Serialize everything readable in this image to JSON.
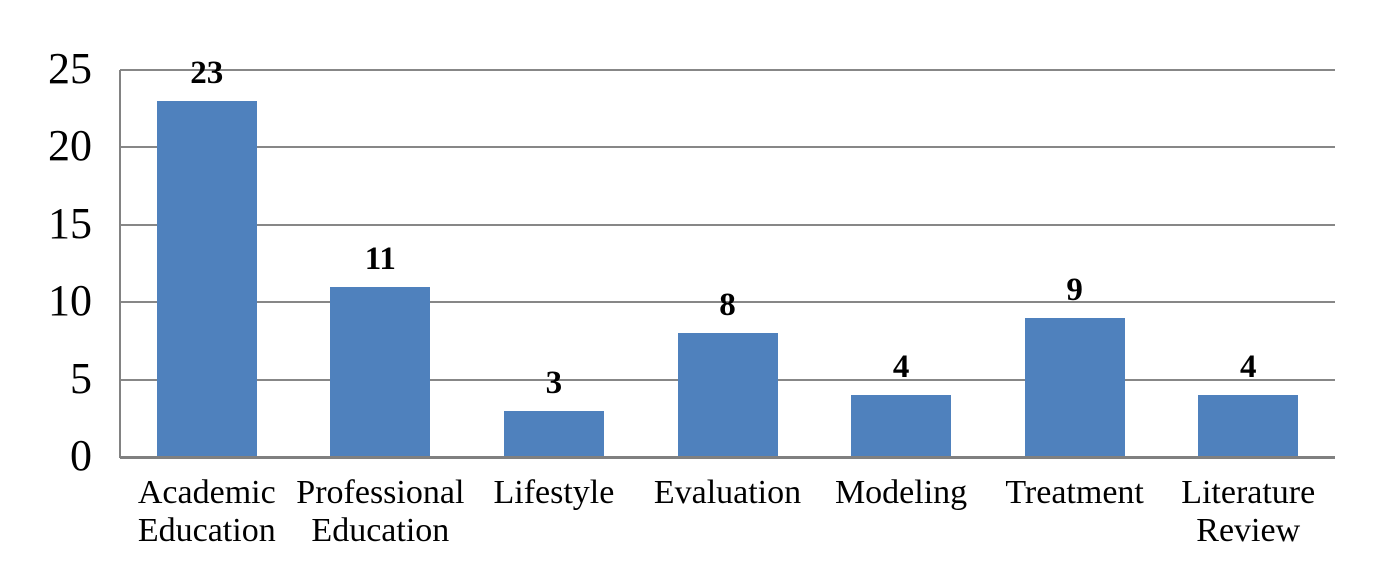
{
  "chart_data": {
    "type": "bar",
    "categories": [
      "Academic Education",
      "Professional Education",
      "Lifestyle",
      "Evaluation",
      "Modeling",
      "Treatment",
      "Literature Review"
    ],
    "categories_wrapped": [
      [
        "Academic",
        "Education"
      ],
      [
        "Professional",
        "Education"
      ],
      [
        "Lifestyle"
      ],
      [
        "Evaluation"
      ],
      [
        "Modeling"
      ],
      [
        "Treatment"
      ],
      [
        "Literature",
        "Review"
      ]
    ],
    "values": [
      23,
      11,
      3,
      8,
      4,
      9,
      4
    ],
    "data_labels": [
      "23",
      "11",
      "3",
      "8",
      "4",
      "9",
      "4"
    ],
    "title": "",
    "xlabel": "",
    "ylabel": "",
    "ylim": [
      0,
      25
    ],
    "yticks": [
      0,
      5,
      10,
      15,
      20,
      25
    ],
    "ytick_labels": [
      "0",
      "5",
      "10",
      "15",
      "20",
      "25"
    ],
    "grid": true,
    "legend": false,
    "colors": {
      "bar_fill": "#4f81bd",
      "gridline": "#878787",
      "axis_line": "#808080",
      "text": "#000000",
      "background": "#ffffff"
    }
  }
}
